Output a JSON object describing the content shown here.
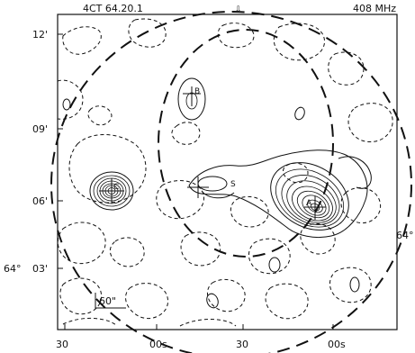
{
  "header": {
    "field_name": "4CT 64.20.1",
    "frequency": "408 MHz"
  },
  "y_ticks": [
    "12'",
    "09'",
    "06'",
    "03'"
  ],
  "dec_degree_labels": [
    "64°",
    "64°"
  ],
  "x_ticks": [
    "30",
    "00s",
    "30",
    "00s"
  ],
  "sources": [
    "A",
    "B",
    "C",
    "S"
  ],
  "scale_bar": "60\""
}
